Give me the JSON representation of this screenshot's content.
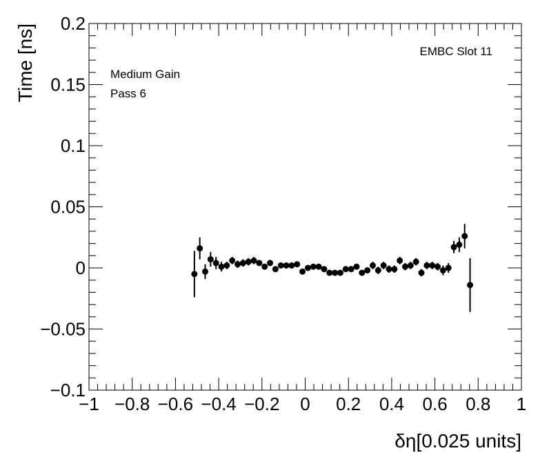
{
  "chart_data": {
    "type": "scatter",
    "title": "",
    "xlabel": "δη[0.025 units]",
    "ylabel": "Time [ns]",
    "xlim": [
      -1,
      1
    ],
    "ylim": [
      -0.1,
      0.2
    ],
    "xticks": [
      -1,
      -0.8,
      -0.6,
      -0.4,
      -0.2,
      0,
      0.2,
      0.4,
      0.6,
      0.8,
      1
    ],
    "xtick_labels": [
      "−1",
      "−0.8",
      "−0.6",
      "−0.4",
      "−0.2",
      "0",
      "0.2",
      "0.4",
      "0.6",
      "0.8",
      "1"
    ],
    "yticks": [
      -0.1,
      -0.05,
      0,
      0.05,
      0.1,
      0.15,
      0.2
    ],
    "ytick_labels": [
      "−0.1",
      "−0.05",
      "0",
      "0.05",
      "0.1",
      "0.15",
      "0.2"
    ],
    "grid": false,
    "annotations": {
      "top_right": "EMBC Slot 11",
      "top_left_line1": "Medium Gain",
      "top_left_line2": "Pass 6"
    },
    "series": [
      {
        "points": [
          {
            "x": -0.5125,
            "y": -0.005,
            "err": 0.019
          },
          {
            "x": -0.4875,
            "y": 0.016,
            "err": 0.009
          },
          {
            "x": -0.4625,
            "y": -0.003,
            "err": 0.006
          },
          {
            "x": -0.4375,
            "y": 0.007,
            "err": 0.006
          },
          {
            "x": -0.4125,
            "y": 0.004,
            "err": 0.005
          },
          {
            "x": -0.3875,
            "y": 0.001,
            "err": 0.004
          },
          {
            "x": -0.3625,
            "y": 0.002,
            "err": 0.003
          },
          {
            "x": -0.3375,
            "y": 0.006,
            "err": 0.003
          },
          {
            "x": -0.3125,
            "y": 0.003,
            "err": 0.003
          },
          {
            "x": -0.2875,
            "y": 0.004,
            "err": 0.003
          },
          {
            "x": -0.2625,
            "y": 0.005,
            "err": 0.003
          },
          {
            "x": -0.2375,
            "y": 0.006,
            "err": 0.003
          },
          {
            "x": -0.2125,
            "y": 0.004,
            "err": 0.002
          },
          {
            "x": -0.1875,
            "y": 0.001,
            "err": 0.002
          },
          {
            "x": -0.1625,
            "y": 0.004,
            "err": 0.002
          },
          {
            "x": -0.1375,
            "y": -0.001,
            "err": 0.002
          },
          {
            "x": -0.1125,
            "y": 0.002,
            "err": 0.002
          },
          {
            "x": -0.0875,
            "y": 0.002,
            "err": 0.002
          },
          {
            "x": -0.0625,
            "y": 0.002,
            "err": 0.002
          },
          {
            "x": -0.0375,
            "y": 0.003,
            "err": 0.002
          },
          {
            "x": -0.0125,
            "y": -0.003,
            "err": 0.002
          },
          {
            "x": 0.0125,
            "y": 0.0,
            "err": 0.002
          },
          {
            "x": 0.0375,
            "y": 0.001,
            "err": 0.002
          },
          {
            "x": 0.0625,
            "y": 0.001,
            "err": 0.002
          },
          {
            "x": 0.0875,
            "y": -0.001,
            "err": 0.002
          },
          {
            "x": 0.1125,
            "y": -0.004,
            "err": 0.002
          },
          {
            "x": 0.1375,
            "y": -0.004,
            "err": 0.002
          },
          {
            "x": 0.1625,
            "y": -0.004,
            "err": 0.002
          },
          {
            "x": 0.1875,
            "y": -0.001,
            "err": 0.002
          },
          {
            "x": 0.2125,
            "y": -0.001,
            "err": 0.002
          },
          {
            "x": 0.2375,
            "y": 0.001,
            "err": 0.002
          },
          {
            "x": 0.2625,
            "y": -0.004,
            "err": 0.002
          },
          {
            "x": 0.2875,
            "y": -0.002,
            "err": 0.002
          },
          {
            "x": 0.3125,
            "y": 0.002,
            "err": 0.003
          },
          {
            "x": 0.3375,
            "y": -0.002,
            "err": 0.003
          },
          {
            "x": 0.3625,
            "y": 0.002,
            "err": 0.003
          },
          {
            "x": 0.3875,
            "y": -0.001,
            "err": 0.003
          },
          {
            "x": 0.4125,
            "y": -0.001,
            "err": 0.003
          },
          {
            "x": 0.4375,
            "y": 0.006,
            "err": 0.003
          },
          {
            "x": 0.4625,
            "y": 0.001,
            "err": 0.003
          },
          {
            "x": 0.4875,
            "y": 0.002,
            "err": 0.003
          },
          {
            "x": 0.5125,
            "y": 0.005,
            "err": 0.003
          },
          {
            "x": 0.5375,
            "y": -0.004,
            "err": 0.003
          },
          {
            "x": 0.5625,
            "y": 0.002,
            "err": 0.003
          },
          {
            "x": 0.5875,
            "y": 0.002,
            "err": 0.003
          },
          {
            "x": 0.6125,
            "y": 0.001,
            "err": 0.003
          },
          {
            "x": 0.6375,
            "y": -0.002,
            "err": 0.004
          },
          {
            "x": 0.6625,
            "y": 0.0,
            "err": 0.004
          },
          {
            "x": 0.6875,
            "y": 0.017,
            "err": 0.005
          },
          {
            "x": 0.7125,
            "y": 0.019,
            "err": 0.006
          },
          {
            "x": 0.7375,
            "y": 0.026,
            "err": 0.01
          },
          {
            "x": 0.7625,
            "y": -0.014,
            "err": 0.022
          }
        ]
      }
    ]
  }
}
